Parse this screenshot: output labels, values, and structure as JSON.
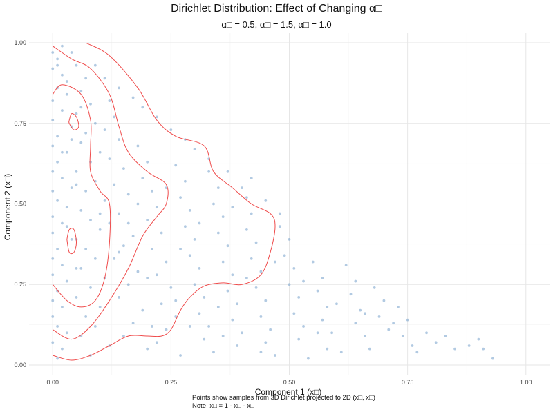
{
  "chart_data": {
    "type": "scatter",
    "title": "Dirichlet Distribution: Effect of Changing α□",
    "subtitle": "α□ = 0.5, α□ = 1.5, α□ = 1.0",
    "xlabel": "Component 1 (x□)",
    "ylabel": "Component 2 (x□)",
    "xlim": [
      -0.05,
      1.05
    ],
    "ylim": [
      -0.03,
      1.03
    ],
    "x_ticks": [
      0.0,
      0.25,
      0.5,
      0.75,
      1.0
    ],
    "x_tick_labels": [
      "0.00",
      "0.25",
      "0.50",
      "0.75",
      "1.00"
    ],
    "y_ticks": [
      0.0,
      0.25,
      0.5,
      0.75,
      1.0
    ],
    "y_tick_labels": [
      "0.00",
      "0.25",
      "0.50",
      "0.75",
      "1.00"
    ],
    "grid": true,
    "point_color": "#7fa6cf",
    "contour_color": "#ef4b4b",
    "points": [
      [
        0.0,
        0.97
      ],
      [
        0.01,
        0.95
      ],
      [
        0.0,
        0.92
      ],
      [
        0.02,
        0.9
      ],
      [
        0.01,
        0.86
      ],
      [
        0.03,
        0.84
      ],
      [
        0.0,
        0.82
      ],
      [
        0.02,
        0.79
      ],
      [
        0.0,
        0.76
      ],
      [
        0.04,
        0.74
      ],
      [
        0.01,
        0.71
      ],
      [
        0.0,
        0.68
      ],
      [
        0.03,
        0.66
      ],
      [
        0.01,
        0.63
      ],
      [
        0.0,
        0.6
      ],
      [
        0.02,
        0.58
      ],
      [
        0.05,
        0.56
      ],
      [
        0.0,
        0.54
      ],
      [
        0.01,
        0.51
      ],
      [
        0.03,
        0.49
      ],
      [
        0.0,
        0.46
      ],
      [
        0.02,
        0.44
      ],
      [
        0.0,
        0.41
      ],
      [
        0.04,
        0.39
      ],
      [
        0.01,
        0.36
      ],
      [
        0.0,
        0.33
      ],
      [
        0.02,
        0.31
      ],
      [
        0.0,
        0.28
      ],
      [
        0.03,
        0.26
      ],
      [
        0.01,
        0.23
      ],
      [
        0.0,
        0.2
      ],
      [
        0.02,
        0.18
      ],
      [
        0.0,
        0.15
      ],
      [
        0.01,
        0.12
      ],
      [
        0.03,
        0.1
      ],
      [
        0.0,
        0.07
      ],
      [
        0.02,
        0.05
      ],
      [
        0.01,
        0.02
      ],
      [
        0.05,
        0.93
      ],
      [
        0.07,
        0.89
      ],
      [
        0.06,
        0.85
      ],
      [
        0.08,
        0.81
      ],
      [
        0.05,
        0.78
      ],
      [
        0.09,
        0.75
      ],
      [
        0.07,
        0.72
      ],
      [
        0.06,
        0.69
      ],
      [
        0.1,
        0.66
      ],
      [
        0.08,
        0.63
      ],
      [
        0.05,
        0.6
      ],
      [
        0.09,
        0.57
      ],
      [
        0.07,
        0.54
      ],
      [
        0.11,
        0.51
      ],
      [
        0.06,
        0.48
      ],
      [
        0.08,
        0.45
      ],
      [
        0.1,
        0.42
      ],
      [
        0.05,
        0.39
      ],
      [
        0.07,
        0.36
      ],
      [
        0.09,
        0.33
      ],
      [
        0.06,
        0.3
      ],
      [
        0.11,
        0.27
      ],
      [
        0.08,
        0.24
      ],
      [
        0.05,
        0.21
      ],
      [
        0.1,
        0.18
      ],
      [
        0.07,
        0.15
      ],
      [
        0.09,
        0.12
      ],
      [
        0.06,
        0.09
      ],
      [
        0.12,
        0.06
      ],
      [
        0.08,
        0.03
      ],
      [
        0.12,
        0.82
      ],
      [
        0.13,
        0.77
      ],
      [
        0.11,
        0.73
      ],
      [
        0.14,
        0.7
      ],
      [
        0.12,
        0.64
      ],
      [
        0.15,
        0.61
      ],
      [
        0.13,
        0.56
      ],
      [
        0.16,
        0.53
      ],
      [
        0.14,
        0.47
      ],
      [
        0.12,
        0.44
      ],
      [
        0.17,
        0.4
      ],
      [
        0.15,
        0.37
      ],
      [
        0.13,
        0.33
      ],
      [
        0.18,
        0.29
      ],
      [
        0.16,
        0.25
      ],
      [
        0.14,
        0.21
      ],
      [
        0.19,
        0.17
      ],
      [
        0.17,
        0.13
      ],
      [
        0.15,
        0.09
      ],
      [
        0.2,
        0.05
      ],
      [
        0.18,
        0.68
      ],
      [
        0.2,
        0.63
      ],
      [
        0.19,
        0.58
      ],
      [
        0.21,
        0.54
      ],
      [
        0.22,
        0.49
      ],
      [
        0.2,
        0.45
      ],
      [
        0.23,
        0.41
      ],
      [
        0.21,
        0.36
      ],
      [
        0.24,
        0.32
      ],
      [
        0.22,
        0.28
      ],
      [
        0.25,
        0.24
      ],
      [
        0.23,
        0.19
      ],
      [
        0.26,
        0.15
      ],
      [
        0.24,
        0.11
      ],
      [
        0.22,
        0.07
      ],
      [
        0.27,
        0.03
      ],
      [
        0.26,
        0.62
      ],
      [
        0.28,
        0.57
      ],
      [
        0.27,
        0.52
      ],
      [
        0.29,
        0.48
      ],
      [
        0.28,
        0.43
      ],
      [
        0.3,
        0.39
      ],
      [
        0.29,
        0.34
      ],
      [
        0.31,
        0.3
      ],
      [
        0.3,
        0.25
      ],
      [
        0.32,
        0.21
      ],
      [
        0.31,
        0.16
      ],
      [
        0.33,
        0.12
      ],
      [
        0.32,
        0.08
      ],
      [
        0.34,
        0.04
      ],
      [
        0.33,
        0.6
      ],
      [
        0.35,
        0.55
      ],
      [
        0.34,
        0.5
      ],
      [
        0.36,
        0.46
      ],
      [
        0.35,
        0.41
      ],
      [
        0.37,
        0.37
      ],
      [
        0.36,
        0.32
      ],
      [
        0.38,
        0.28
      ],
      [
        0.37,
        0.23
      ],
      [
        0.39,
        0.19
      ],
      [
        0.38,
        0.14
      ],
      [
        0.4,
        0.1
      ],
      [
        0.39,
        0.06
      ],
      [
        0.41,
        0.52
      ],
      [
        0.42,
        0.47
      ],
      [
        0.41,
        0.42
      ],
      [
        0.43,
        0.38
      ],
      [
        0.42,
        0.33
      ],
      [
        0.44,
        0.29
      ],
      [
        0.43,
        0.24
      ],
      [
        0.45,
        0.2
      ],
      [
        0.44,
        0.15
      ],
      [
        0.46,
        0.11
      ],
      [
        0.45,
        0.07
      ],
      [
        0.47,
        0.03
      ],
      [
        0.48,
        0.43
      ],
      [
        0.5,
        0.39
      ],
      [
        0.49,
        0.34
      ],
      [
        0.51,
        0.3
      ],
      [
        0.5,
        0.25
      ],
      [
        0.52,
        0.21
      ],
      [
        0.51,
        0.16
      ],
      [
        0.53,
        0.12
      ],
      [
        0.52,
        0.08
      ],
      [
        0.55,
        0.32
      ],
      [
        0.57,
        0.27
      ],
      [
        0.56,
        0.23
      ],
      [
        0.58,
        0.18
      ],
      [
        0.57,
        0.14
      ],
      [
        0.59,
        0.1
      ],
      [
        0.58,
        0.05
      ],
      [
        0.62,
        0.31
      ],
      [
        0.64,
        0.26
      ],
      [
        0.63,
        0.22
      ],
      [
        0.65,
        0.17
      ],
      [
        0.64,
        0.13
      ],
      [
        0.66,
        0.09
      ],
      [
        0.68,
        0.24
      ],
      [
        0.7,
        0.2
      ],
      [
        0.69,
        0.15
      ],
      [
        0.71,
        0.11
      ],
      [
        0.73,
        0.18
      ],
      [
        0.75,
        0.14
      ],
      [
        0.74,
        0.09
      ],
      [
        0.76,
        0.06
      ],
      [
        0.79,
        0.1
      ],
      [
        0.81,
        0.07
      ],
      [
        0.85,
        0.05
      ],
      [
        0.88,
        0.06
      ],
      [
        0.91,
        0.05
      ],
      [
        0.93,
        0.02
      ],
      [
        0.9,
        0.08
      ],
      [
        0.83,
        0.09
      ],
      [
        0.77,
        0.04
      ],
      [
        0.67,
        0.05
      ],
      [
        0.61,
        0.04
      ],
      [
        0.54,
        0.02
      ],
      [
        0.48,
        0.47
      ],
      [
        0.45,
        0.51
      ],
      [
        0.4,
        0.55
      ],
      [
        0.37,
        0.6
      ],
      [
        0.33,
        0.64
      ],
      [
        0.3,
        0.67
      ],
      [
        0.28,
        0.7
      ],
      [
        0.25,
        0.73
      ],
      [
        0.22,
        0.77
      ],
      [
        0.19,
        0.8
      ],
      [
        0.17,
        0.83
      ],
      [
        0.14,
        0.86
      ],
      [
        0.11,
        0.89
      ],
      [
        0.09,
        0.93
      ],
      [
        0.04,
        0.97
      ],
      [
        0.02,
        0.99
      ],
      [
        0.29,
        0.12
      ],
      [
        0.35,
        0.18
      ],
      [
        0.41,
        0.27
      ],
      [
        0.47,
        0.32
      ],
      [
        0.53,
        0.26
      ],
      [
        0.6,
        0.19
      ],
      [
        0.66,
        0.16
      ],
      [
        0.72,
        0.13
      ],
      [
        0.56,
        0.1
      ],
      [
        0.44,
        0.04
      ],
      [
        0.36,
        0.09
      ],
      [
        0.26,
        0.2
      ],
      [
        0.2,
        0.27
      ],
      [
        0.14,
        0.35
      ],
      [
        0.1,
        0.47
      ],
      [
        0.04,
        0.55
      ],
      [
        0.03,
        0.43
      ],
      [
        0.05,
        0.3
      ],
      [
        0.02,
        0.66
      ],
      [
        0.04,
        0.7
      ],
      [
        0.06,
        0.8
      ],
      [
        0.03,
        0.88
      ],
      [
        0.01,
        0.93
      ],
      [
        0.16,
        0.44
      ],
      [
        0.18,
        0.5
      ],
      [
        0.24,
        0.55
      ],
      [
        0.31,
        0.44
      ],
      [
        0.38,
        0.49
      ],
      [
        0.42,
        0.58
      ],
      [
        0.27,
        0.36
      ],
      [
        0.21,
        0.12
      ]
    ],
    "contours": [
      [
        [
          0.0,
          0.03
        ],
        [
          0.04,
          0.015
        ],
        [
          0.08,
          0.03
        ],
        [
          0.12,
          0.06
        ],
        [
          0.16,
          0.09
        ],
        [
          0.2,
          0.09
        ],
        [
          0.23,
          0.09
        ],
        [
          0.25,
          0.11
        ],
        [
          0.27,
          0.17
        ],
        [
          0.29,
          0.21
        ],
        [
          0.32,
          0.245
        ],
        [
          0.36,
          0.255
        ],
        [
          0.4,
          0.25
        ],
        [
          0.44,
          0.28
        ],
        [
          0.46,
          0.35
        ],
        [
          0.47,
          0.43
        ],
        [
          0.46,
          0.47
        ],
        [
          0.42,
          0.5
        ],
        [
          0.38,
          0.55
        ],
        [
          0.34,
          0.6
        ],
        [
          0.32,
          0.68
        ],
        [
          0.26,
          0.71
        ],
        [
          0.22,
          0.76
        ],
        [
          0.18,
          0.86
        ],
        [
          0.12,
          0.96
        ],
        [
          0.07,
          1.0
        ]
      ],
      [
        [
          0.0,
          0.11
        ],
        [
          0.04,
          0.08
        ],
        [
          0.08,
          0.12
        ],
        [
          0.12,
          0.2
        ],
        [
          0.16,
          0.3
        ],
        [
          0.19,
          0.4
        ],
        [
          0.22,
          0.46
        ],
        [
          0.24,
          0.5
        ],
        [
          0.24,
          0.56
        ],
        [
          0.2,
          0.6
        ],
        [
          0.16,
          0.66
        ],
        [
          0.14,
          0.74
        ],
        [
          0.12,
          0.84
        ],
        [
          0.08,
          0.92
        ],
        [
          0.04,
          0.95
        ],
        [
          0.0,
          0.99
        ]
      ],
      [
        [
          0.0,
          0.25
        ],
        [
          0.03,
          0.2
        ],
        [
          0.06,
          0.18
        ],
        [
          0.09,
          0.2
        ],
        [
          0.11,
          0.27
        ],
        [
          0.12,
          0.38
        ],
        [
          0.12,
          0.5
        ],
        [
          0.1,
          0.54
        ],
        [
          0.08,
          0.6
        ],
        [
          0.08,
          0.68
        ],
        [
          0.08,
          0.76
        ],
        [
          0.06,
          0.84
        ],
        [
          0.02,
          0.87
        ],
        [
          0.0,
          0.84
        ]
      ],
      [
        [
          0.03,
          0.39
        ],
        [
          0.035,
          0.42
        ],
        [
          0.045,
          0.42
        ],
        [
          0.05,
          0.38
        ],
        [
          0.045,
          0.35
        ],
        [
          0.035,
          0.35
        ],
        [
          0.03,
          0.39
        ]
      ],
      [
        [
          0.035,
          0.76
        ],
        [
          0.04,
          0.78
        ],
        [
          0.05,
          0.77
        ],
        [
          0.055,
          0.74
        ],
        [
          0.045,
          0.73
        ],
        [
          0.035,
          0.75
        ],
        [
          0.035,
          0.76
        ]
      ]
    ]
  },
  "caption": {
    "line1": "Points show samples from 3D Dirichlet projected to 2D (x□, x□)",
    "line2": "Note: x□ = 1 - x□ - x□"
  }
}
